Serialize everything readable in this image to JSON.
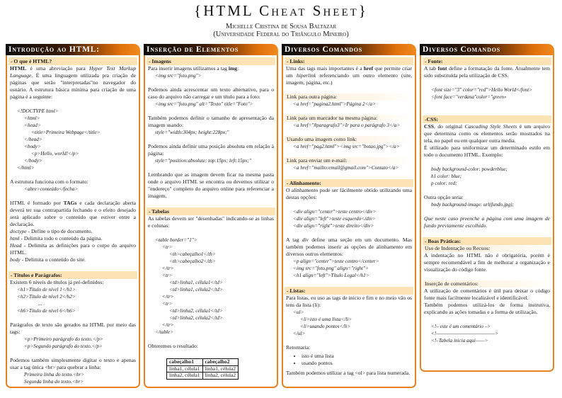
{
  "header": {
    "title": "{HTML Cheat Sheet}",
    "author": "Michelle Cristina de Sousa Baltazar",
    "institution": "(Universidade Federal do Triângulo Mineiro)"
  },
  "colors": {
    "accent": "#e8821e",
    "subheading_bg": "#fce3b6",
    "header_dark": "#0d0d0d"
  },
  "columns": [
    {
      "title": "Introdução ao HTML:",
      "blocks": [
        {
          "type": "sub",
          "text": "- O que é HTML?"
        },
        {
          "type": "p",
          "segs": [
            {
              "t": "HTML",
              "s": "b"
            },
            {
              "t": " é uma abreviação para "
            },
            {
              "t": "Hyper Text Markup Language",
              "s": "i"
            },
            {
              "t": ". É uma linguagem utilizada pra criação de páginas que serão \"interpretadas\"no navegador do usuário. A estrutura básica mínima para criação de uma página é a seguinte:"
            }
          ]
        },
        {
          "type": "gap"
        },
        {
          "type": "code",
          "lines": [
            [
              1,
              "<!DOCTYPE html>"
            ],
            [
              2,
              "<html>"
            ],
            [
              2,
              "<head>"
            ],
            [
              3,
              "<title>Primeira Webpage</title>"
            ],
            [
              2,
              "</head>"
            ],
            [
              2,
              "<body>"
            ],
            [
              3,
              "<p>Hello, world!</p>"
            ],
            [
              2,
              "</body>"
            ],
            [
              1,
              "</html>"
            ]
          ]
        },
        {
          "type": "gap"
        },
        {
          "type": "p",
          "segs": [
            {
              "t": "A estrutura funciona com o formato:"
            }
          ]
        },
        {
          "type": "code",
          "lines": [
            [
              2,
              "<abre>conteúdo</fecha>"
            ]
          ]
        },
        {
          "type": "gap"
        },
        {
          "type": "p",
          "segs": [
            {
              "t": "HTML é formado por "
            },
            {
              "t": "TAGs",
              "s": "b"
            },
            {
              "t": " e cada declaração aberta deverá ter sua contrapartida fechando e o efeito desejado será aplicado sobre o conteúdo que estiver entre a declaração."
            }
          ]
        },
        {
          "type": "p",
          "segs": [
            {
              "t": "doctype",
              "s": "i"
            },
            {
              "t": " - Define o tipo de documento."
            }
          ]
        },
        {
          "type": "p",
          "segs": [
            {
              "t": "html",
              "s": "i"
            },
            {
              "t": " - Delimita todo o conteúdo da página."
            }
          ]
        },
        {
          "type": "p",
          "segs": [
            {
              "t": "Head",
              "s": "i"
            },
            {
              "t": " - Delimita as definições para o corpo do arquivo HTML."
            }
          ]
        },
        {
          "type": "p",
          "segs": [
            {
              "t": "body",
              "s": "i"
            },
            {
              "t": " - Delimita o conteúdo do site."
            }
          ]
        },
        {
          "type": "gap"
        },
        {
          "type": "sub",
          "text": "- Títulos e Parágrafos:"
        },
        {
          "type": "p",
          "segs": [
            {
              "t": "Existem 6 níveis de títulos já pré-definidos:"
            }
          ]
        },
        {
          "type": "code",
          "lines": [
            [
              1,
              "<h1>Título de nível 1</h1>"
            ],
            [
              1,
              "<h2>Título de nível 2</h2>"
            ],
            [
              4,
              "..."
            ],
            [
              1,
              "<h6>Título de nível 6</h6>"
            ]
          ]
        },
        {
          "type": "gap"
        },
        {
          "type": "p",
          "segs": [
            {
              "t": "Parágrafos de texto são gerados na HTML por meio das tags:"
            }
          ]
        },
        {
          "type": "code",
          "lines": [
            [
              2,
              "<p>Primeiro parágrafo do texto.</p>"
            ],
            [
              2,
              "<p>Segundo parágrafo do texto.</p>"
            ]
          ]
        },
        {
          "type": "gap"
        },
        {
          "type": "p",
          "segs": [
            {
              "t": "Podemos também simplesmente digitar o texto e apenas usar a tag única <br> para quebrar a linha:"
            }
          ]
        },
        {
          "type": "code",
          "lines": [
            [
              2,
              "Primeira linha do texto.<br>"
            ],
            [
              2,
              "Segunda linha do texto.<br>"
            ]
          ]
        }
      ]
    },
    {
      "title": "Inserção de Elementos",
      "blocks": [
        {
          "type": "sub",
          "text": "- Imagens"
        },
        {
          "type": "p",
          "segs": [
            {
              "t": "Para inserir imagens utilizamos a tag "
            },
            {
              "t": "img",
              "s": "b"
            },
            {
              "t": ":"
            }
          ]
        },
        {
          "type": "code",
          "lines": [
            [
              1,
              "<img src=\"foto.png\">"
            ]
          ]
        },
        {
          "type": "gap"
        },
        {
          "type": "p",
          "segs": [
            {
              "t": "Podemos ainda acrescentar um texto alternativo, para o caso do arquivo não carregar e um título para a foto:"
            }
          ]
        },
        {
          "type": "code",
          "lines": [
            [
              1,
              "<img src=\"foto.png\" alt=\"Texto\" title=\"Foto\">"
            ]
          ]
        },
        {
          "type": "gap"
        },
        {
          "type": "p",
          "segs": [
            {
              "t": "Também podemos definir o tamanho de apresentação da imagem usando:"
            }
          ]
        },
        {
          "type": "code",
          "lines": [
            [
              1,
              "style=\"width:304px; height:228px;\""
            ]
          ]
        },
        {
          "type": "gap"
        },
        {
          "type": "p",
          "segs": [
            {
              "t": "Podemos ainda definir uma posição absoluta em relação à página:"
            }
          ]
        },
        {
          "type": "code",
          "lines": [
            [
              1,
              "style=\"position:absolute; top:15px; left:15px;\""
            ]
          ]
        },
        {
          "type": "gap"
        },
        {
          "type": "p",
          "segs": [
            {
              "t": "Lembrando que as imagem devem ficar na mesma pasta onde o arquivo HTML se encontra ou devemos utilizar o \"endereço\" completo do arquivo online para referenciar a imagem."
            }
          ]
        },
        {
          "type": "gap"
        },
        {
          "type": "sub",
          "text": "- Tabelas"
        },
        {
          "type": "p",
          "segs": [
            {
              "t": "As tabelas devem ser \"desenhadas\" indicando-se as linhas e colunas:"
            }
          ]
        },
        {
          "type": "gap"
        },
        {
          "type": "code",
          "lines": [
            [
              1,
              "<table border=\"1\">"
            ],
            [
              2,
              "<tr>"
            ],
            [
              3,
              "<th>cabeçalho1</th>"
            ],
            [
              3,
              "<th>cabeçalho2</th>"
            ],
            [
              2,
              "</tr>"
            ],
            [
              2,
              "<tr>"
            ],
            [
              3,
              "<td>linha1, célula1</td>"
            ],
            [
              3,
              "<td>linha1, célula2</td>"
            ],
            [
              2,
              "</tr>"
            ],
            [
              2,
              "<tr>"
            ],
            [
              3,
              "<td>linha2, célula1</td>"
            ],
            [
              3,
              "<td>linha2, célula2</td>"
            ],
            [
              2,
              "</tr>"
            ],
            [
              1,
              "</table>"
            ]
          ]
        },
        {
          "type": "gap"
        },
        {
          "type": "p",
          "segs": [
            {
              "t": "Obteremos o resultado:"
            }
          ]
        },
        {
          "type": "gap"
        },
        {
          "type": "table",
          "head": [
            "cabeçalho1",
            "cabeçalho2"
          ],
          "rows": [
            [
              "linha1, célula1",
              "linha1, célula2"
            ],
            [
              "linha2, célula1",
              "linha2, célula2"
            ]
          ]
        }
      ]
    },
    {
      "title": "Diversos Comandos",
      "blocks": [
        {
          "type": "sub",
          "text": "- Links:"
        },
        {
          "type": "p",
          "segs": [
            {
              "t": "Uma das tags mais importantes é a "
            },
            {
              "t": "href",
              "s": "b"
            },
            {
              "t": " que permite criar um "
            },
            {
              "t": "hiperlink",
              "s": "i"
            },
            {
              "t": " referenciando um outro elemento (site, imagem, página, etc.)"
            }
          ]
        },
        {
          "type": "gap"
        },
        {
          "type": "lbl",
          "text": "Link para outra página:"
        },
        {
          "type": "code",
          "lines": [
            [
              1,
              "<a href=\"pagina2.html\">Página 2</a>"
            ]
          ]
        },
        {
          "type": "gap"
        },
        {
          "type": "lbl",
          "text": "Link para um marcador na mesma página:"
        },
        {
          "type": "code",
          "lines": [
            [
              1,
              "<a href=\"#paragrafo3\">Ir para o parágrafo 3</a>"
            ]
          ]
        },
        {
          "type": "gap"
        },
        {
          "type": "lbl",
          "text": "Usando uma imagem como link:"
        },
        {
          "type": "code",
          "lines": [
            [
              1,
              "<a href=\"pag2.html\"><img src=\"botao.jpg\"></a>"
            ]
          ]
        },
        {
          "type": "gap"
        },
        {
          "type": "lbl",
          "text": "Link para enviar um e-mail:"
        },
        {
          "type": "code",
          "lines": [
            [
              1,
              "<a href=\"mailto:email@gmail.com\">Contato</a>"
            ]
          ]
        },
        {
          "type": "gap"
        },
        {
          "type": "sub",
          "text": "- Alinhamento:"
        },
        {
          "type": "p",
          "segs": [
            {
              "t": "O alinhamento pode ser fácilmente obtido utilizando uma destas opções:"
            }
          ]
        },
        {
          "type": "gap"
        },
        {
          "type": "code",
          "lines": [
            [
              1,
              "<div align=\"center\">teste centro</div>"
            ],
            [
              1,
              "<div align=\"left\">teste esquerdo</div>"
            ],
            [
              1,
              "<div align=\"right\">teste direito</div>"
            ]
          ]
        },
        {
          "type": "gap"
        },
        {
          "type": "p",
          "segs": [
            {
              "t": "A tag "
            },
            {
              "t": "div",
              "s": "i"
            },
            {
              "t": " define uma seção em um documento. Mas também podemos inserir as opções de alinhamento em diversos outros elementos:"
            }
          ]
        },
        {
          "type": "code",
          "lines": [
            [
              1,
              "<p align=\"center\">teste centro</center>"
            ],
            [
              1,
              "<img src=\"foto.png\" align=\"right\">"
            ],
            [
              1,
              "<h1 align=\"left\">Título Legal</h1>"
            ]
          ]
        },
        {
          "type": "gap"
        },
        {
          "type": "sub",
          "text": "- Listas:"
        },
        {
          "type": "p",
          "segs": [
            {
              "t": "Para listas, eu uso as tags de início e fim e no meio vão os tens da lista (li):"
            }
          ]
        },
        {
          "type": "code",
          "lines": [
            [
              1,
              "<ul>"
            ],
            [
              2,
              "<li>isto é uma lista</li>"
            ],
            [
              2,
              "<li>usando pontos</li>"
            ],
            [
              1,
              "</ul>"
            ]
          ]
        },
        {
          "type": "gap"
        },
        {
          "type": "p",
          "segs": [
            {
              "t": "Retornaria:"
            }
          ]
        },
        {
          "type": "ul",
          "items": [
            "isto é uma lista",
            "usando pontos"
          ]
        },
        {
          "type": "p",
          "segs": [
            {
              "t": "Também podemos utilizar a tag <ol> para lista numerada."
            }
          ]
        }
      ]
    },
    {
      "title": "Diversos Comandos",
      "blocks": [
        {
          "type": "sub",
          "text": "- Fonte:"
        },
        {
          "type": "p",
          "segs": [
            {
              "t": "A tab "
            },
            {
              "t": "font",
              "s": "b"
            },
            {
              "t": " define a formatação da fonte. Atualmente tem sido substituída pela utilização de CSS."
            }
          ]
        },
        {
          "type": "gap"
        },
        {
          "type": "code",
          "lines": [
            [
              1,
              "<font size=\"3\" color=\"red\">Hello World</font>"
            ],
            [
              1,
              "<font face=\"verdana\"color=\"green»"
            ]
          ]
        },
        {
          "type": "gap"
        },
        {
          "type": "gap"
        },
        {
          "type": "sub",
          "text": "-CSS:"
        },
        {
          "type": "p",
          "segs": [
            {
              "t": "CSS",
              "s": "b"
            },
            {
              "t": ", do original "
            },
            {
              "t": "Cascading Style Sheets",
              "s": "i"
            },
            {
              "t": " é um arquivo que determina como os elementos serão mostrados na tela, no papel ou em qualquer outra media."
            }
          ]
        },
        {
          "type": "p",
          "segs": [
            {
              "t": "É utilizado para uniformizar um determinado estilo em todo o documento HTML. Exemplo:"
            }
          ]
        },
        {
          "type": "gap"
        },
        {
          "type": "code",
          "lines": [
            [
              1,
              "body  background-color: powderblue;"
            ],
            [
              1,
              "h1  color: blue;"
            ],
            [
              1,
              "p  color: red;"
            ]
          ]
        },
        {
          "type": "gap"
        },
        {
          "type": "p",
          "segs": [
            {
              "t": "Outra opção seria:"
            }
          ]
        },
        {
          "type": "code",
          "lines": [
            [
              1,
              "body background-image: url(fundo.jpg);"
            ]
          ]
        },
        {
          "type": "gap"
        },
        {
          "type": "p",
          "segs": [
            {
              "t": "Que neste caso preenche a página com uma imagem de fundo previamente escolhido.",
              "s": "i"
            }
          ]
        },
        {
          "type": "gap"
        },
        {
          "type": "sub",
          "text": "- Boas Práticas:"
        },
        {
          "type": "lbl",
          "text": "Uso de Indentação ou Recuos:"
        },
        {
          "type": "p",
          "segs": [
            {
              "t": "A indentação no HTML não é obrigatória, porém é sempre recomendável a fim de melhorar a organização e visualização do código fonte."
            }
          ]
        },
        {
          "type": "gap"
        },
        {
          "type": "lbl",
          "text": "Inserção de comentários:"
        },
        {
          "type": "p",
          "segs": [
            {
              "t": "A utilização de comentários é útil para deixar o código fonte mais facilmente localizável e identificável."
            }
          ]
        },
        {
          "type": "p",
          "segs": [
            {
              "t": "Também podemos utilizá-los de forma instrutiva, explicando as ações tomadas e a forma de utilização."
            }
          ]
        },
        {
          "type": "gap"
        },
        {
          "type": "code",
          "lines": [
            [
              1,
              "<!– este é um comentário –>"
            ],
            [
              1,
              "<!—————————————>"
            ],
            [
              1,
              "<!–Tabela inicia aqui——>"
            ]
          ]
        }
      ]
    }
  ]
}
